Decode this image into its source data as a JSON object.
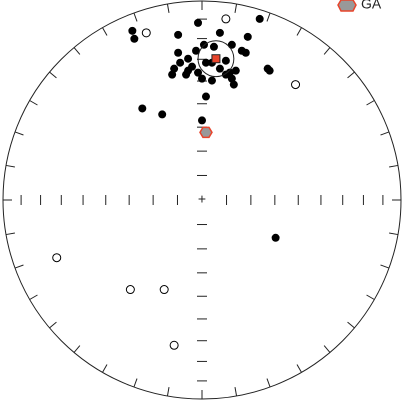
{
  "chart_data": {
    "type": "stereonet",
    "legend": {
      "label": "GA"
    },
    "filled": {
      "color": "#000000",
      "x": [
        -0.35,
        -0.34,
        -0.02,
        0.29,
        -0.12,
        0.09,
        0.23,
        0.01,
        -0.12,
        -0.03,
        0.06,
        0.15,
        0.2,
        0.22,
        -0.07,
        -0.11,
        -0.05,
        -0.14,
        -0.15,
        -0.08,
        -0.02,
        0.05,
        0.09,
        0.12,
        0.15,
        0.16,
        0.14,
        0.05,
        0.0,
        -0.07,
        0.33,
        0.34,
        0.02,
        -0.3,
        -0.2,
        0.0,
        0.37,
        0.02,
        0.12,
        0.17
      ],
      "y": [
        0.85,
        0.81,
        0.89,
        0.91,
        0.83,
        0.84,
        0.82,
        0.78,
        0.74,
        0.75,
        0.77,
        0.78,
        0.75,
        0.74,
        0.71,
        0.69,
        0.67,
        0.66,
        0.63,
        0.63,
        0.64,
        0.69,
        0.66,
        0.63,
        0.61,
        0.58,
        0.64,
        0.6,
        0.61,
        0.65,
        0.66,
        0.65,
        0.52,
        0.46,
        0.43,
        0.4,
        -0.19,
        0.69,
        0.7,
        0.65
      ]
    },
    "open": {
      "color": "#000000",
      "x": [
        -0.28,
        0.12,
        0.47,
        -0.73,
        -0.36,
        -0.19,
        -0.14
      ],
      "y": [
        0.84,
        0.91,
        0.58,
        -0.29,
        -0.45,
        -0.45,
        -0.73
      ]
    },
    "mean": {
      "x": 0.07,
      "y": 0.71,
      "radius": 0.09,
      "color": "#e8452c"
    },
    "ga": {
      "x": 0.02,
      "y": 0.34,
      "color": "#e8452c"
    }
  }
}
